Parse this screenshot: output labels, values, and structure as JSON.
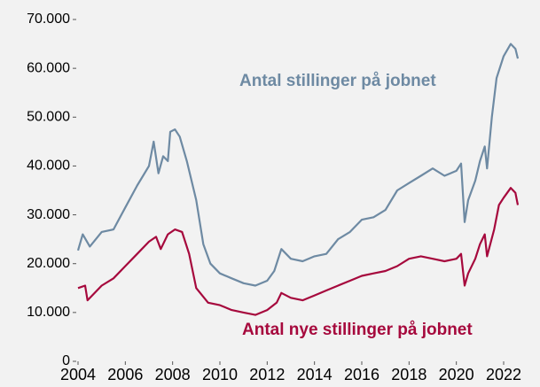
{
  "chart_data": {
    "type": "line",
    "xlim": [
      2004,
      2022.6
    ],
    "xticks": [
      2004,
      2006,
      2008,
      2010,
      2012,
      2014,
      2016,
      2018,
      2020,
      2022
    ],
    "ylim": [
      0,
      70000
    ],
    "yticks": [
      0,
      {
        "value": 10000,
        "label": "10.000"
      },
      {
        "value": 20000,
        "label": "20.000"
      },
      {
        "value": 30000,
        "label": "30.000"
      },
      {
        "value": 40000,
        "label": "40.000"
      },
      {
        "value": 50000,
        "label": "50.000"
      },
      {
        "value": 60000,
        "label": "60.000"
      },
      {
        "value": 70000,
        "label": "70.000"
      }
    ],
    "series": [
      {
        "name": "Antal stillinger på jobnet",
        "color": "#6e8aa3",
        "x": [
          2004.0,
          2004.2,
          2004.5,
          2005.0,
          2005.5,
          2006.0,
          2006.5,
          2007.0,
          2007.2,
          2007.4,
          2007.6,
          2007.8,
          2007.9,
          2008.1,
          2008.3,
          2008.6,
          2009.0,
          2009.3,
          2009.6,
          2010.0,
          2010.5,
          2011.0,
          2011.5,
          2012.0,
          2012.3,
          2012.6,
          2013.0,
          2013.5,
          2014.0,
          2014.5,
          2015.0,
          2015.5,
          2016.0,
          2016.5,
          2017.0,
          2017.5,
          2018.0,
          2018.5,
          2019.0,
          2019.5,
          2020.0,
          2020.2,
          2020.35,
          2020.5,
          2020.8,
          2021.0,
          2021.2,
          2021.3,
          2021.5,
          2021.7,
          2022.0,
          2022.3,
          2022.5,
          2022.6
        ],
        "values": [
          22700,
          26000,
          23500,
          26500,
          27000,
          31500,
          36000,
          40000,
          45000,
          38500,
          42000,
          41000,
          47000,
          47500,
          46000,
          41000,
          33000,
          24000,
          20000,
          18000,
          17000,
          16000,
          15500,
          16500,
          18500,
          23000,
          21000,
          20500,
          21500,
          22000,
          25000,
          26500,
          29000,
          29500,
          31000,
          35000,
          36500,
          38000,
          39500,
          38000,
          39000,
          40500,
          28500,
          33000,
          37000,
          41000,
          44000,
          39500,
          50000,
          58000,
          62500,
          65000,
          64000,
          62000
        ]
      },
      {
        "name": "Antal nye stillinger på jobnet",
        "color": "#a6093d",
        "x": [
          2004.0,
          2004.3,
          2004.4,
          2005.0,
          2005.5,
          2006.0,
          2006.5,
          2007.0,
          2007.3,
          2007.5,
          2007.8,
          2008.1,
          2008.4,
          2008.7,
          2009.0,
          2009.5,
          2010.0,
          2010.5,
          2011.0,
          2011.5,
          2012.0,
          2012.4,
          2012.6,
          2013.0,
          2013.5,
          2014.0,
          2014.5,
          2015.0,
          2015.5,
          2016.0,
          2016.5,
          2017.0,
          2017.5,
          2018.0,
          2018.5,
          2019.0,
          2019.5,
          2020.0,
          2020.2,
          2020.35,
          2020.5,
          2020.8,
          2021.0,
          2021.2,
          2021.3,
          2021.6,
          2021.8,
          2022.0,
          2022.3,
          2022.5,
          2022.6
        ],
        "values": [
          15000,
          15500,
          12500,
          15500,
          17000,
          19500,
          22000,
          24500,
          25500,
          23000,
          26000,
          27000,
          26500,
          22000,
          15000,
          12000,
          11500,
          10500,
          10000,
          9500,
          10500,
          12000,
          14000,
          13000,
          12500,
          13500,
          14500,
          15500,
          16500,
          17500,
          18000,
          18500,
          19500,
          21000,
          21500,
          21000,
          20500,
          21000,
          22000,
          15500,
          18000,
          21000,
          24000,
          26000,
          21500,
          27000,
          32000,
          33500,
          35500,
          34500,
          32000
        ]
      }
    ]
  }
}
